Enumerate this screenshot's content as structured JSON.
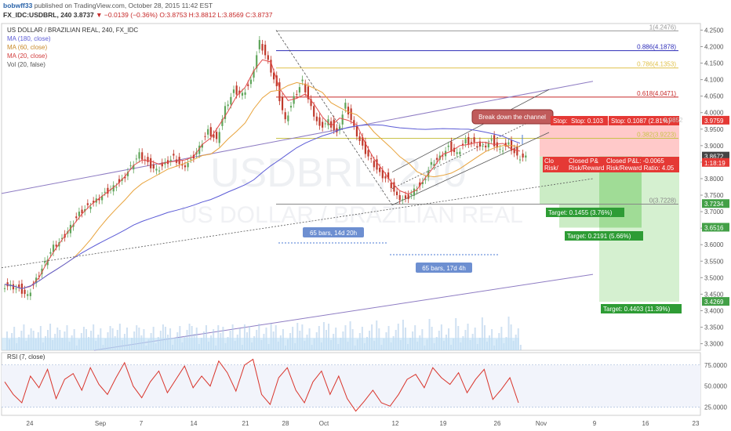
{
  "header": {
    "author": "bobwff33",
    "published_text": "published on TradingView.com, October 28, 2015 11:42 EST",
    "symbol_line": "FX_IDC:USDBRL, 240",
    "last_price": "3.8737",
    "change": "▼ −0.0139 (−0.36%)",
    "ohlc": "O:3.8753 H:3.8812 L:3.8569 C:3.8737"
  },
  "indicators": [
    "US DOLLAR / BRAZILIAN REAL, 240, FX_IDC",
    "MA (180, close)",
    "MA (60, close)",
    "MA (20, close)",
    "Vol (20, false)"
  ],
  "rsi_label": "RSI (7, close)",
  "colors": {
    "up": "#5fa55a",
    "down": "#c0392b",
    "ma180": "#5b5bd6",
    "ma60": "#e8a33c",
    "ma20": "#e24b4b",
    "stop_zone": "#ffbcbc",
    "target_zone": "#b9e6b1",
    "rsi": "#d9342b"
  },
  "chart_data": [
    {
      "type": "candlestick",
      "ylim": [
        3.28,
        4.27
      ],
      "y_ticks": [
        "4.2500",
        "4.2000",
        "4.1500",
        "4.1000",
        "4.0500",
        "4.0000",
        "3.9500",
        "3.9000",
        "3.8500",
        "3.8000",
        "3.7500",
        "3.7000",
        "3.6500",
        "3.6000",
        "3.5500",
        "3.5000",
        "3.4500",
        "3.4000",
        "3.3500",
        "3.3000"
      ],
      "x_ticks": [
        "24",
        "Sep",
        "7",
        "14",
        "21",
        "28",
        "Oct",
        "12",
        "19",
        "26",
        "Nov",
        "9",
        "16",
        "23"
      ],
      "series_close_path": [
        3.48,
        3.47,
        3.45,
        3.5,
        3.55,
        3.6,
        3.62,
        3.66,
        3.7,
        3.72,
        3.74,
        3.76,
        3.78,
        3.8,
        3.84,
        3.88,
        3.85,
        3.83,
        3.85,
        3.87,
        3.84,
        3.86,
        3.9,
        3.95,
        3.92,
        4.02,
        4.07,
        4.06,
        4.1,
        4.22,
        4.16,
        4.08,
        3.98,
        4.05,
        4.1,
        4.02,
        3.96,
        3.98,
        3.94,
        4.03,
        3.96,
        3.9,
        3.86,
        3.82,
        3.8,
        3.75,
        3.74,
        3.77,
        3.79,
        3.85,
        3.87,
        3.9,
        3.88,
        3.92,
        3.91,
        3.9,
        3.92,
        3.89,
        3.91,
        3.87,
        3.87
      ],
      "fib_levels": [
        {
          "label": "1(4.2476)",
          "value": 4.2476
        },
        {
          "label": "0.886(4.1878)",
          "value": 4.1878
        },
        {
          "label": "0.786(4.1353)",
          "value": 4.1353
        },
        {
          "label": "0.618(4.0471)",
          "value": 4.0471
        },
        {
          "label": "0.382(3.9223)",
          "value": 3.9223
        },
        {
          "label": "0(3.7228)",
          "value": 3.7228
        }
      ],
      "price_labels": [
        {
          "text": "3.9759",
          "color": "#e53935"
        },
        {
          "text": "3.8672",
          "color": "#444444"
        },
        {
          "text": "1:18:19",
          "color": "#e53935"
        },
        {
          "text": "3.7234",
          "color": "#43a047"
        },
        {
          "text": "3.6516",
          "color": "#43a047"
        },
        {
          "text": "3.4269",
          "color": "#43a047"
        }
      ],
      "annotations": {
        "callout": "Break down the channel",
        "stop_full": "Stop: 0.1087 (2.81%)",
        "stop_mid": "Stop: 0.103",
        "stop_left": "Stop:",
        "stop_hidden": "0.9852",
        "closed_pl_mid": "Closed P&",
        "rr_mid": "Risk/Reward",
        "closed_pl_right": "Closed P&L: -0.0065",
        "rr_right": "Risk/Reward Ratio: 4.05",
        "closed_left": "Clo",
        "rr_left": "Risk/",
        "target1": "Target: 0.1455 (3.76%)",
        "target2": "Target: 0.2191 (5.66%)",
        "target3": "Target: 0.4403 (11.39%)",
        "bars1": "65 bars, 14d 20h",
        "bars2": "65 bars, 17d 4h",
        "watermark1": "USDBRL, 240",
        "watermark2": "US DOLLAR / BRAZILIAN REAL"
      }
    },
    {
      "type": "line",
      "name": "RSI (7, close)",
      "ylim": [
        15,
        90
      ],
      "y_ticks": [
        "75.0000",
        "50.0000",
        "25.0000"
      ],
      "bands": [
        75,
        25
      ],
      "values": [
        55,
        40,
        30,
        62,
        48,
        70,
        35,
        58,
        65,
        45,
        72,
        52,
        40,
        60,
        78,
        50,
        36,
        55,
        68,
        42,
        58,
        74,
        48,
        62,
        50,
        80,
        66,
        44,
        75,
        82,
        40,
        28,
        60,
        72,
        45,
        30,
        55,
        68,
        40,
        62,
        35,
        20,
        32,
        45,
        30,
        26,
        40,
        58,
        64,
        48,
        72,
        60,
        52,
        66,
        42,
        58,
        70,
        34,
        46,
        60,
        30
      ]
    }
  ]
}
